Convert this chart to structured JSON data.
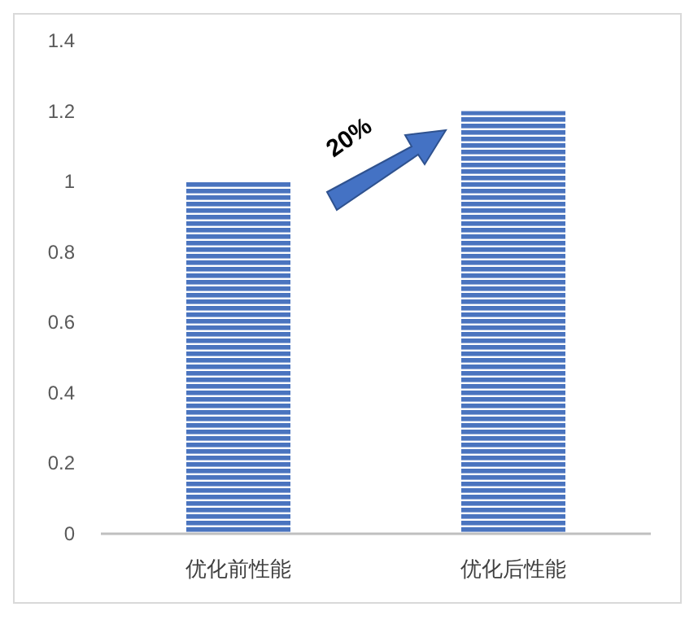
{
  "chart_data": {
    "type": "bar",
    "categories": [
      "优化前性能",
      "优化后性能"
    ],
    "values": [
      1,
      1.2
    ],
    "color": "#4a74bf",
    "ylim": [
      0,
      1.4
    ],
    "yticks": [
      0,
      0.2,
      0.4,
      0.6,
      0.8,
      1,
      1.2,
      1.4
    ],
    "grid": false,
    "annotations": [
      "20%"
    ]
  }
}
